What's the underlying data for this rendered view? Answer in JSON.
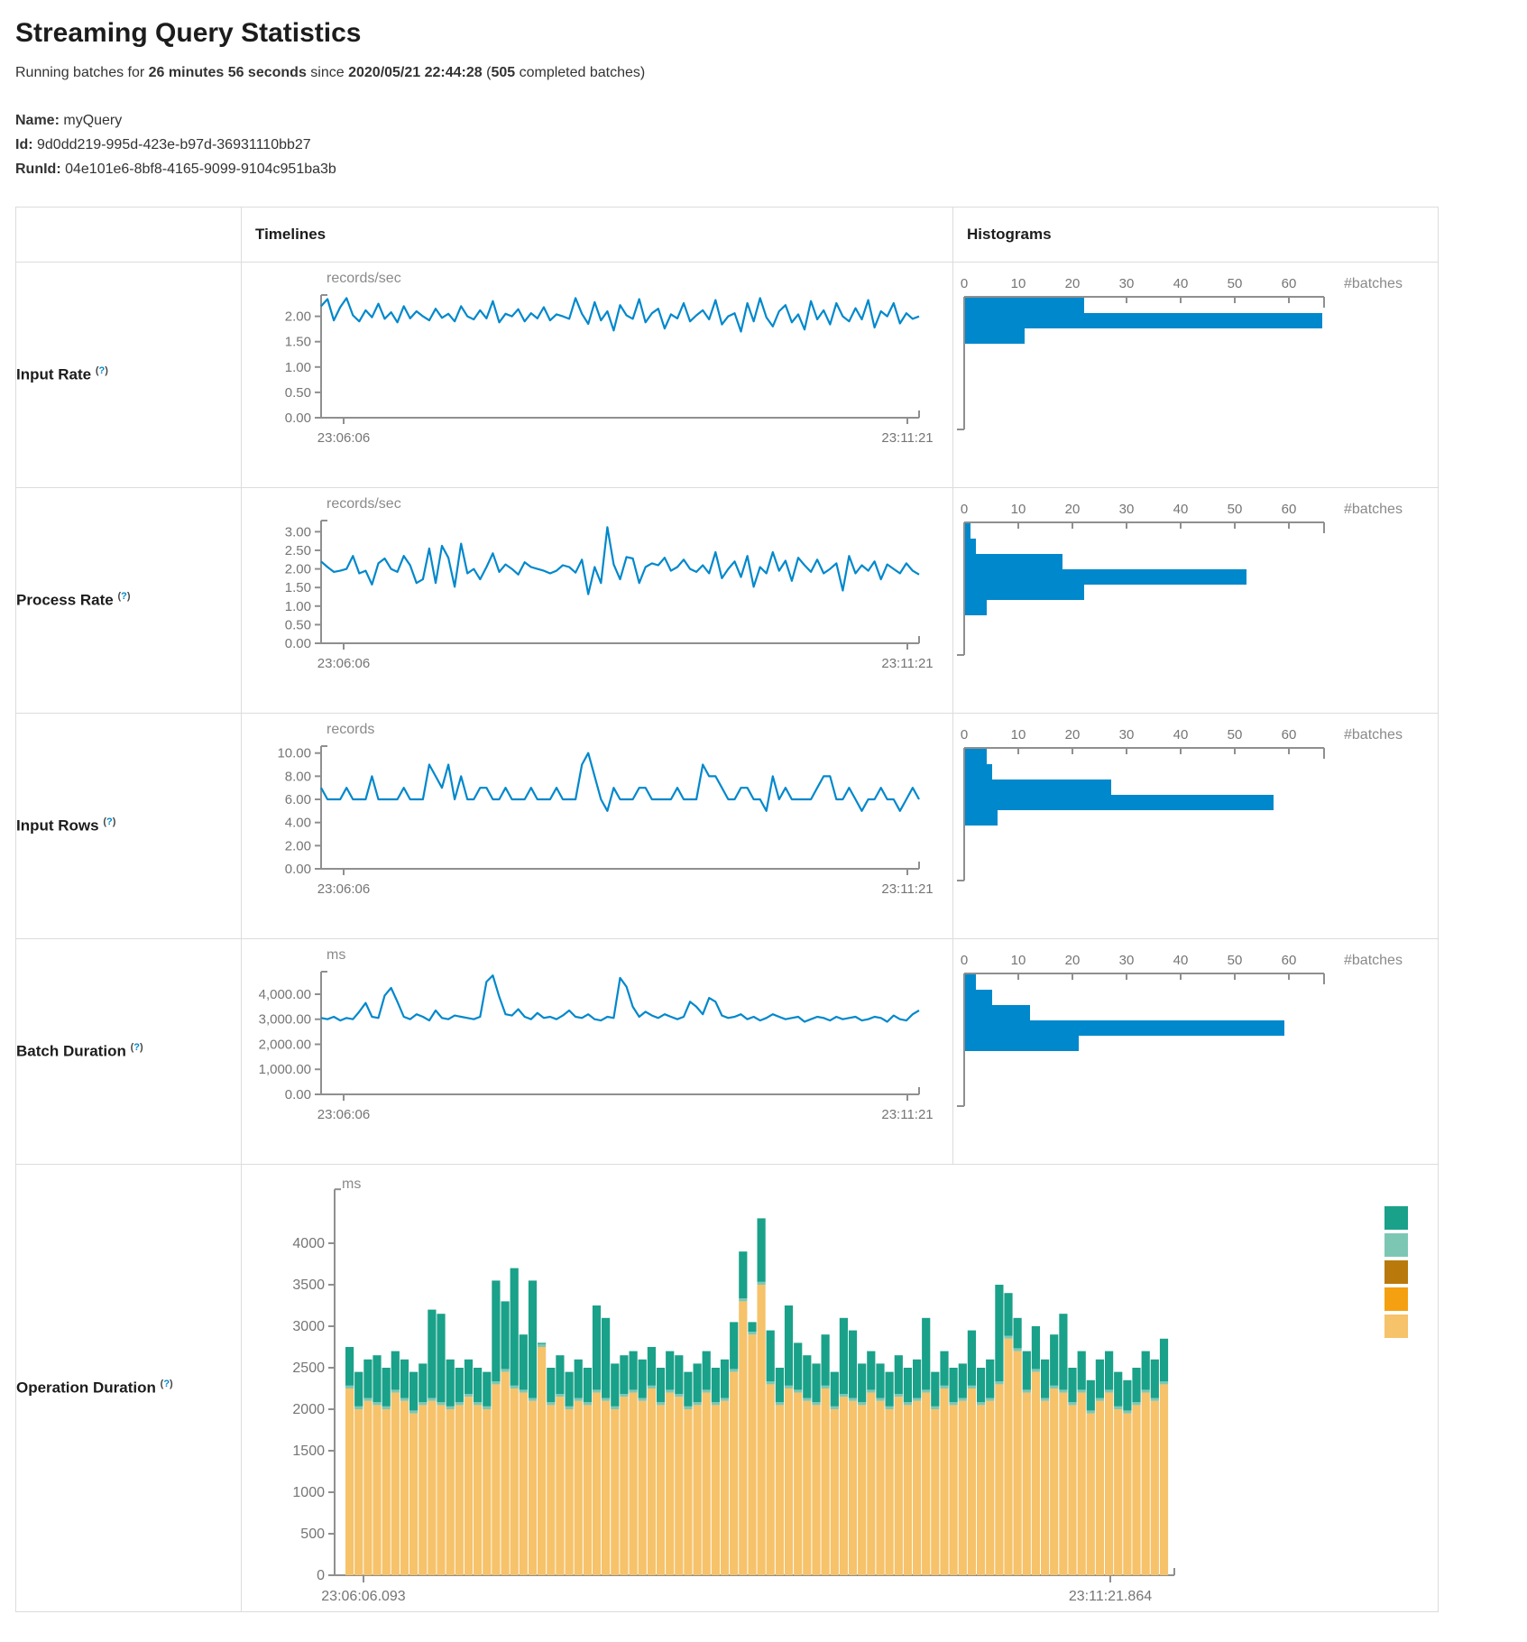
{
  "page": {
    "title": "Streaming Query Statistics",
    "subtitle": {
      "prefix": "Running batches for ",
      "duration": "26 minutes 56 seconds",
      "since_word": " since ",
      "timestamp": "2020/05/21 22:44:28",
      "open_paren": " (",
      "batch_count": "505",
      "suffix": " completed batches)"
    },
    "query": {
      "name_label": "Name:",
      "name_value": "myQuery",
      "id_label": "Id:",
      "id_value": "9d0dd219-995d-423e-b97d-36931110bb27",
      "runid_label": "RunId:",
      "runid_value": "04e101e6-8bf8-4165-9099-9104c951ba3b"
    }
  },
  "table": {
    "headers": {
      "timelines": "Timelines",
      "histograms": "Histograms"
    },
    "rows": [
      {
        "label": "Input Rate",
        "help": "?"
      },
      {
        "label": "Process Rate",
        "help": "?"
      },
      {
        "label": "Input Rows",
        "help": "?"
      },
      {
        "label": "Batch Duration",
        "help": "?"
      },
      {
        "label": "Operation Duration",
        "help": "?"
      }
    ]
  },
  "colors": {
    "line_blue": "#0088cc",
    "hist_blue": "#0088cc",
    "axis_gray": "#8f8f8f",
    "tick_text": "#757575",
    "stack_teal": "#1aa189",
    "stack_light_teal": "#7cc7b4",
    "stack_brown": "#b9790b",
    "stack_orange": "#f5a011",
    "stack_tan": "#f6c26a"
  },
  "chart_data": [
    {
      "target": "input-rate-timeline",
      "type": "line",
      "unit_label": "records/sec",
      "ytick_values": [
        0,
        0.5,
        1,
        1.5,
        2
      ],
      "ytick_labels": [
        "0.00",
        "0.50",
        "1.00",
        "1.50",
        "2.00"
      ],
      "ymax": 2.42,
      "ylim": [
        0,
        2.42
      ],
      "x_start_label": "23:06:06",
      "x_end_label": "23:11:21",
      "color": "#0088cc",
      "values": [
        2.2,
        2.34,
        1.92,
        2.18,
        2.36,
        2.02,
        1.9,
        2.12,
        1.98,
        2.25,
        1.95,
        2.08,
        1.88,
        2.2,
        1.96,
        2.1,
        2.0,
        1.92,
        2.15,
        1.97,
        2.05,
        1.9,
        2.2,
        2.0,
        1.94,
        2.12,
        1.96,
        2.3,
        1.88,
        2.05,
        2.0,
        2.14,
        1.9,
        2.06,
        1.96,
        2.18,
        1.92,
        2.04,
        2.0,
        1.95,
        2.36,
        2.05,
        1.85,
        2.28,
        1.92,
        2.1,
        1.72,
        2.22,
        2.02,
        1.95,
        2.34,
        1.88,
        2.06,
        2.15,
        1.76,
        2.04,
        1.96,
        2.26,
        1.9,
        2.02,
        2.12,
        1.94,
        2.32,
        1.84,
        2.0,
        2.06,
        1.7,
        2.26,
        1.9,
        2.36,
        1.98,
        1.8,
        2.1,
        2.22,
        1.88,
        2.04,
        1.74,
        2.3,
        1.94,
        2.12,
        1.84,
        2.26,
        2.0,
        1.9,
        2.16,
        1.94,
        2.32,
        1.78,
        2.1,
        2.0,
        2.26,
        1.86,
        2.06,
        1.95,
        2.0
      ]
    },
    {
      "target": "input-rate-histogram",
      "type": "hbar",
      "xtick_values": [
        0,
        10,
        20,
        30,
        40,
        50,
        60
      ],
      "xtick_labels": [
        "0",
        "10",
        "20",
        "30",
        "40",
        "50",
        "60"
      ],
      "xmax": 66.5,
      "xlim": [
        0,
        66.5
      ],
      "axis_label": "#batches",
      "color": "#0088cc",
      "values": [
        22,
        66,
        11
      ]
    },
    {
      "target": "process-rate-timeline",
      "type": "line",
      "unit_label": "records/sec",
      "ytick_values": [
        0,
        0.5,
        1,
        1.5,
        2,
        2.5,
        3
      ],
      "ytick_labels": [
        "0.00",
        "0.50",
        "1.00",
        "1.50",
        "2.00",
        "2.50",
        "3.00"
      ],
      "ymax": 3.3,
      "ylim": [
        0,
        3.3
      ],
      "x_start_label": "23:06:06",
      "x_end_label": "23:11:21",
      "color": "#0088cc",
      "values": [
        2.2,
        2.05,
        1.92,
        1.95,
        2.0,
        2.35,
        1.88,
        1.95,
        1.58,
        2.15,
        2.28,
        2.0,
        1.92,
        2.35,
        2.1,
        1.62,
        1.72,
        2.55,
        1.62,
        2.62,
        2.3,
        1.52,
        2.68,
        1.88,
        2.0,
        1.72,
        2.05,
        2.42,
        1.92,
        2.12,
        2.0,
        1.85,
        2.18,
        2.05,
        2.0,
        1.95,
        1.88,
        1.95,
        2.1,
        2.05,
        1.9,
        2.25,
        1.32,
        2.05,
        1.62,
        3.12,
        2.12,
        1.72,
        2.32,
        2.28,
        1.62,
        2.05,
        2.15,
        2.1,
        2.3,
        1.95,
        2.05,
        2.25,
        2.0,
        1.92,
        2.1,
        1.88,
        2.45,
        1.75,
        2.0,
        2.2,
        1.78,
        2.35,
        1.52,
        2.05,
        1.88,
        2.45,
        1.95,
        2.22,
        1.68,
        2.3,
        2.1,
        1.92,
        2.25,
        1.88,
        2.0,
        2.15,
        1.42,
        2.35,
        1.88,
        2.1,
        1.95,
        2.2,
        1.72,
        2.12,
        2.0,
        1.88,
        2.15,
        1.95,
        1.85
      ]
    },
    {
      "target": "process-rate-histogram",
      "type": "hbar",
      "xtick_values": [
        0,
        10,
        20,
        30,
        40,
        50,
        60
      ],
      "xtick_labels": [
        "0",
        "10",
        "20",
        "30",
        "40",
        "50",
        "60"
      ],
      "xmax": 66.5,
      "xlim": [
        0,
        66.5
      ],
      "axis_label": "#batches",
      "color": "#0088cc",
      "values": [
        1,
        2,
        18,
        52,
        22,
        4
      ]
    },
    {
      "target": "input-rows-timeline",
      "type": "line",
      "unit_label": "records",
      "ytick_values": [
        0,
        2,
        4,
        6,
        8,
        10
      ],
      "ytick_labels": [
        "0.00",
        "2.00",
        "4.00",
        "6.00",
        "8.00",
        "10.00"
      ],
      "ymax": 10.6,
      "ylim": [
        0,
        10.6
      ],
      "x_start_label": "23:06:06",
      "x_end_label": "23:11:21",
      "color": "#0088cc",
      "values": [
        7,
        6,
        6,
        6,
        7,
        6,
        6,
        6,
        8,
        6,
        6,
        6,
        6,
        7,
        6,
        6,
        6,
        9,
        8,
        7,
        9,
        6,
        8,
        6,
        6,
        7,
        7,
        6,
        6,
        7,
        6,
        6,
        6,
        7,
        6,
        6,
        6,
        7,
        6,
        6,
        6,
        9,
        10,
        8,
        6,
        5,
        7,
        6,
        6,
        6,
        7,
        7,
        6,
        6,
        6,
        6,
        7,
        6,
        6,
        6,
        9,
        8,
        8,
        7,
        6,
        6,
        7,
        7,
        6,
        6,
        5,
        8,
        6,
        7,
        6,
        6,
        6,
        6,
        7,
        8,
        8,
        6,
        6,
        7,
        6,
        5,
        6,
        6,
        7,
        6,
        6,
        5,
        6,
        7,
        6
      ]
    },
    {
      "target": "input-rows-histogram",
      "type": "hbar",
      "xtick_values": [
        0,
        10,
        20,
        30,
        40,
        50,
        60
      ],
      "xtick_labels": [
        "0",
        "10",
        "20",
        "30",
        "40",
        "50",
        "60"
      ],
      "xmax": 66.5,
      "xlim": [
        0,
        66.5
      ],
      "axis_label": "#batches",
      "color": "#0088cc",
      "values": [
        4,
        5,
        27,
        57,
        6
      ]
    },
    {
      "target": "batch-duration-timeline",
      "type": "line",
      "unit_label": "ms",
      "ytick_values": [
        0,
        1000,
        2000,
        3000,
        4000
      ],
      "ytick_labels": [
        "0.00",
        "1,000.00",
        "2,000.00",
        "3,000.00",
        "4,000.00"
      ],
      "ymax": 4900,
      "ylim": [
        0,
        4900
      ],
      "x_start_label": "23:06:06",
      "x_end_label": "23:11:21",
      "color": "#0088cc",
      "values": [
        3050,
        3000,
        3100,
        2950,
        3050,
        3000,
        3300,
        3650,
        3100,
        3050,
        3950,
        4250,
        3700,
        3100,
        3000,
        3200,
        3100,
        2950,
        3350,
        3050,
        3000,
        3150,
        3100,
        3050,
        3000,
        3100,
        4500,
        4750,
        3900,
        3200,
        3150,
        3400,
        3100,
        3000,
        3250,
        3050,
        3100,
        3000,
        3150,
        3350,
        3100,
        3050,
        3200,
        3000,
        2950,
        3100,
        3050,
        4650,
        4300,
        3500,
        3100,
        3300,
        3150,
        3050,
        3200,
        3100,
        3000,
        3100,
        3700,
        3500,
        3200,
        3850,
        3700,
        3150,
        3050,
        3100,
        3200,
        3000,
        3100,
        2950,
        3050,
        3200,
        3100,
        3000,
        3050,
        3100,
        2900,
        3000,
        3100,
        3050,
        2950,
        3100,
        3000,
        3050,
        3100,
        2950,
        3000,
        3100,
        3050,
        2900,
        3150,
        3000,
        2950,
        3200,
        3350
      ]
    },
    {
      "target": "batch-duration-histogram",
      "type": "hbar",
      "xtick_values": [
        0,
        10,
        20,
        30,
        40,
        50,
        60
      ],
      "xtick_labels": [
        "0",
        "10",
        "20",
        "30",
        "40",
        "50",
        "60"
      ],
      "xmax": 66.5,
      "xlim": [
        0,
        66.5
      ],
      "axis_label": "#batches",
      "color": "#0088cc",
      "values": [
        2,
        5,
        12,
        59,
        21
      ]
    },
    {
      "target": "operation-duration",
      "type": "stacked",
      "unit_label": "ms",
      "ytick_values": [
        0,
        500,
        1000,
        1500,
        2000,
        2500,
        3000,
        3500,
        4000
      ],
      "ytick_labels": [
        "0",
        "500",
        "1000",
        "1500",
        "2000",
        "2500",
        "3000",
        "3500",
        "4000"
      ],
      "ymax": 4650,
      "ylim": [
        0,
        4650
      ],
      "x_start_label": "23:06:06.093",
      "x_end_label": "23:11:21.864",
      "legend_colors": [
        "#1aa189",
        "#7cc7b4",
        "#b9790b",
        "#f5a011",
        "#f6c26a"
      ],
      "series": {
        "bottom_color": "#f6c26a",
        "middle_color": "#7cc7b4",
        "top_color": "#1aa189",
        "middle_value": 35,
        "bottom": [
          2250,
          2000,
          2100,
          2050,
          2000,
          2200,
          2100,
          1950,
          2050,
          2100,
          2050,
          2000,
          2050,
          2150,
          2050,
          2000,
          2300,
          2450,
          2250,
          2200,
          2100,
          2750,
          2050,
          2150,
          2000,
          2100,
          2050,
          2200,
          2100,
          2000,
          2150,
          2200,
          2100,
          2250,
          2050,
          2200,
          2150,
          2000,
          2050,
          2200,
          2050,
          2100,
          2450,
          3300,
          2900,
          3500,
          2300,
          2050,
          2250,
          2200,
          2100,
          2050,
          2250,
          2000,
          2150,
          2100,
          2050,
          2200,
          2100,
          2000,
          2150,
          2050,
          2100,
          2200,
          2000,
          2250,
          2050,
          2100,
          2250,
          2050,
          2100,
          2300,
          2850,
          2700,
          2200,
          2450,
          2100,
          2250,
          2200,
          2050,
          2200,
          1950,
          2100,
          2200,
          2000,
          1950,
          2050,
          2200,
          2100,
          2300
        ],
        "totals": [
          2750,
          2450,
          2600,
          2650,
          2500,
          2700,
          2600,
          2450,
          2550,
          3200,
          3150,
          2600,
          2500,
          2600,
          2500,
          2450,
          3550,
          3300,
          3700,
          2900,
          3550,
          2800,
          2500,
          2650,
          2450,
          2600,
          2500,
          3250,
          3100,
          2550,
          2650,
          2700,
          2600,
          2750,
          2500,
          2700,
          2650,
          2450,
          2550,
          2700,
          2500,
          2600,
          3050,
          3900,
          3050,
          4300,
          2950,
          2500,
          3250,
          2800,
          2650,
          2550,
          2900,
          2450,
          3100,
          2950,
          2550,
          2700,
          2550,
          2450,
          2650,
          2500,
          2600,
          3100,
          2450,
          2700,
          2500,
          2550,
          2950,
          2500,
          2600,
          3500,
          3400,
          3100,
          2700,
          3000,
          2600,
          2900,
          3150,
          2500,
          2700,
          2350,
          2600,
          2700,
          2450,
          2350,
          2500,
          2700,
          2600,
          2850
        ]
      }
    }
  ]
}
